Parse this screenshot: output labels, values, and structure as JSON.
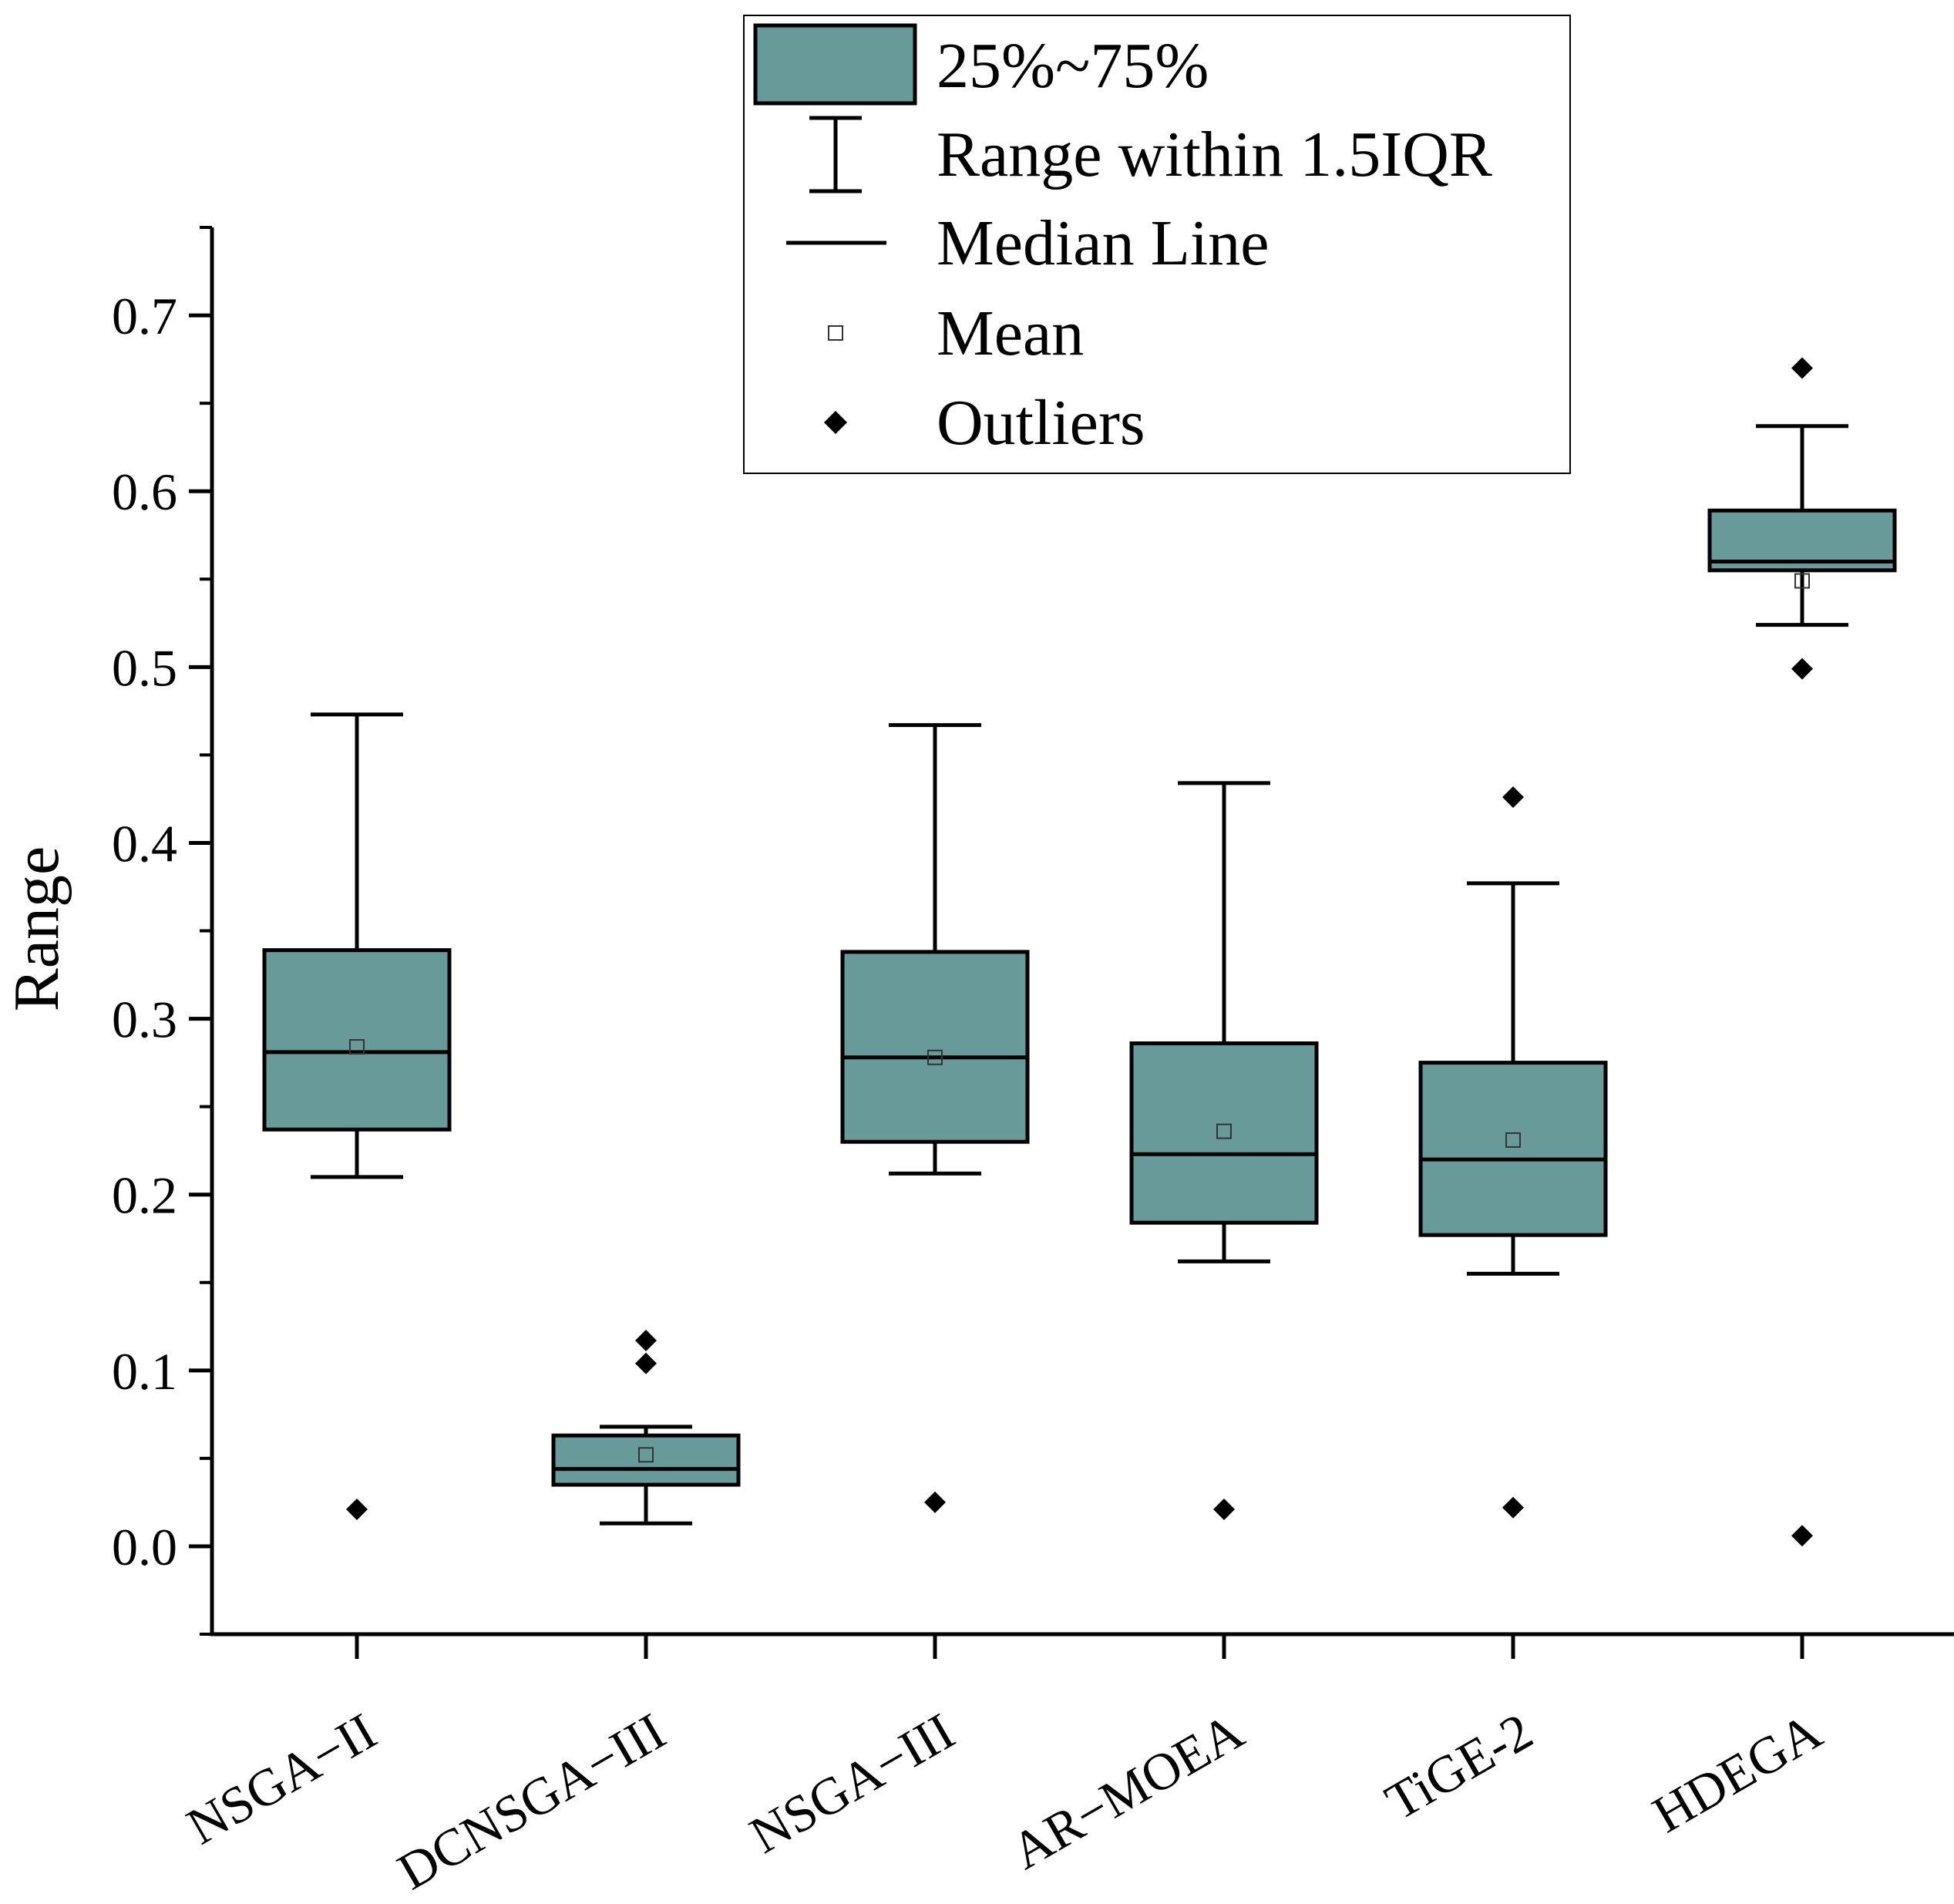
{
  "chart_data": {
    "type": "box",
    "title": "",
    "xlabel": "",
    "ylabel": "Range",
    "ylim": [
      -0.05,
      0.75
    ],
    "yticks": [
      0.0,
      0.1,
      0.2,
      0.3,
      0.4,
      0.5,
      0.6,
      0.7
    ],
    "ytick_labels": [
      "0.0",
      "0.1",
      "0.2",
      "0.3",
      "0.4",
      "0.5",
      "0.6",
      "0.7"
    ],
    "box_color": "#689a99",
    "categories": [
      "NSGA−II",
      "DCNSGA−III",
      "NSGA−III",
      "AR−MOEA",
      "TiGE-2",
      "HDEGA"
    ],
    "boxes": [
      {
        "name": "NSGA−II",
        "whisker_low": 0.21,
        "q1": 0.237,
        "median": 0.281,
        "q3": 0.339,
        "whisker_high": 0.473,
        "mean": 0.284,
        "outliers": [
          0.021
        ]
      },
      {
        "name": "DCNSGA−III",
        "whisker_low": 0.013,
        "q1": 0.035,
        "median": 0.044,
        "q3": 0.063,
        "whisker_high": 0.068,
        "mean": 0.052,
        "outliers": [
          0.104,
          0.117
        ]
      },
      {
        "name": "NSGA−III",
        "whisker_low": 0.212,
        "q1": 0.23,
        "median": 0.278,
        "q3": 0.338,
        "whisker_high": 0.467,
        "mean": 0.278,
        "outliers": [
          0.025
        ]
      },
      {
        "name": "AR−MOEA",
        "whisker_low": 0.162,
        "q1": 0.184,
        "median": 0.223,
        "q3": 0.286,
        "whisker_high": 0.434,
        "mean": 0.236,
        "outliers": [
          0.021
        ]
      },
      {
        "name": "TiGE-2",
        "whisker_low": 0.155,
        "q1": 0.177,
        "median": 0.22,
        "q3": 0.275,
        "whisker_high": 0.377,
        "mean": 0.231,
        "outliers": [
          0.022,
          0.426
        ]
      },
      {
        "name": "HDEGA",
        "whisker_low": 0.524,
        "q1": 0.555,
        "median": 0.56,
        "q3": 0.589,
        "whisker_high": 0.637,
        "mean": 0.549,
        "outliers": [
          0.006,
          0.499,
          0.67
        ]
      }
    ],
    "legend": {
      "position": "top-center",
      "items": [
        {
          "key": "box",
          "label": "25%~75%"
        },
        {
          "key": "whisker",
          "label": "Range within 1.5IQR"
        },
        {
          "key": "median",
          "label": "Median Line"
        },
        {
          "key": "mean",
          "label": "Mean"
        },
        {
          "key": "outlier",
          "label": "Outliers"
        }
      ]
    }
  }
}
